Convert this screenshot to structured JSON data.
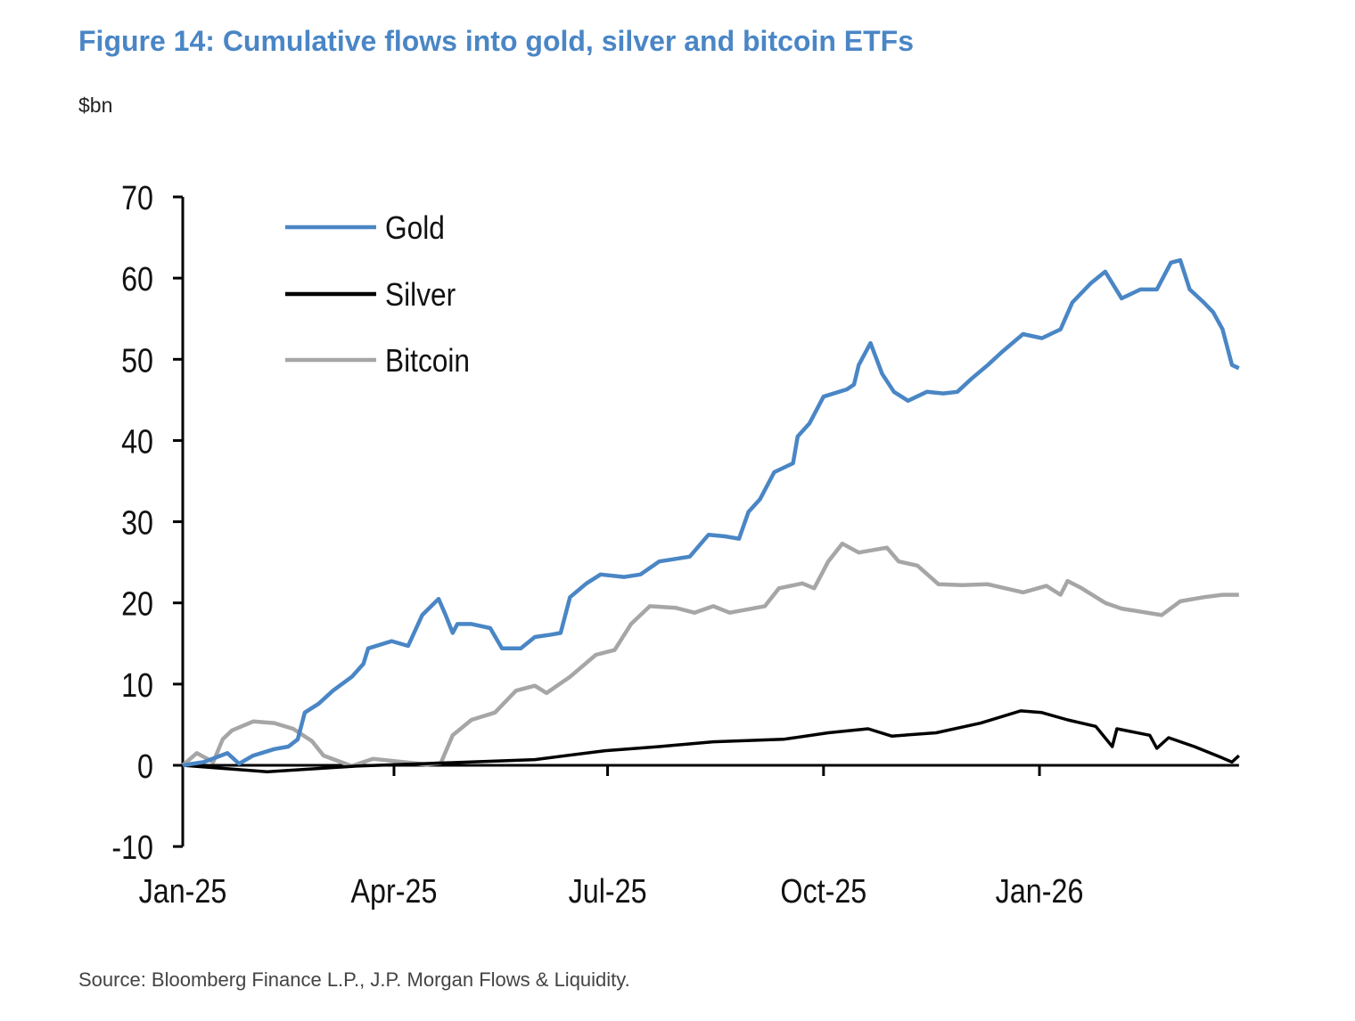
{
  "header": {
    "title": "Figure 14: Cumulative flows into gold, silver and bitcoin ETFs",
    "unit": "$bn"
  },
  "footer": {
    "source": "Source: Bloomberg Finance L.P., J.P. Morgan Flows & Liquidity."
  },
  "chart_data": {
    "type": "line",
    "title": "Figure 14: Cumulative flows into gold, silver and bitcoin ETFs",
    "ylabel": "$bn",
    "xlabel": "",
    "ylim": [
      -10,
      70
    ],
    "yticks": [
      "70",
      "60",
      "50",
      "40",
      "30",
      "20",
      "10",
      "0",
      "-10"
    ],
    "xlim": [
      "2025-01-01",
      "2026-03-27"
    ],
    "xticks": [
      {
        "date": "2025-01-01",
        "label": "Jan-25"
      },
      {
        "date": "2025-04-01",
        "label": "Apr-25"
      },
      {
        "date": "2025-07-01",
        "label": "Jul-25"
      },
      {
        "date": "2025-10-01",
        "label": "Oct-25"
      },
      {
        "date": "2026-01-01",
        "label": "Jan-26"
      }
    ],
    "grid": false,
    "legend": "top-left",
    "series": [
      {
        "name": "Gold",
        "color": "#4a86c5",
        "points": [
          [
            "2025-01-01",
            0
          ],
          [
            "2025-01-10",
            0.4
          ],
          [
            "2025-01-20",
            1.5
          ],
          [
            "2025-01-25",
            0.2
          ],
          [
            "2025-01-31",
            1.2
          ],
          [
            "2025-02-09",
            2.0
          ],
          [
            "2025-02-15",
            2.3
          ],
          [
            "2025-02-19",
            3.2
          ],
          [
            "2025-02-22",
            6.5
          ],
          [
            "2025-02-28",
            7.6
          ],
          [
            "2025-03-06",
            9.2
          ],
          [
            "2025-03-14",
            10.9
          ],
          [
            "2025-03-19",
            12.5
          ],
          [
            "2025-03-21",
            14.4
          ],
          [
            "2025-03-31",
            15.3
          ],
          [
            "2025-04-07",
            14.7
          ],
          [
            "2025-04-13",
            18.5
          ],
          [
            "2025-04-20",
            20.5
          ],
          [
            "2025-04-23",
            18.5
          ],
          [
            "2025-04-26",
            16.3
          ],
          [
            "2025-04-28",
            17.4
          ],
          [
            "2025-05-04",
            17.4
          ],
          [
            "2025-05-12",
            16.9
          ],
          [
            "2025-05-17",
            14.4
          ],
          [
            "2025-05-25",
            14.4
          ],
          [
            "2025-05-31",
            15.8
          ],
          [
            "2025-06-07",
            16.1
          ],
          [
            "2025-06-11",
            16.3
          ],
          [
            "2025-06-15",
            20.7
          ],
          [
            "2025-06-22",
            22.4
          ],
          [
            "2025-06-28",
            23.5
          ],
          [
            "2025-07-08",
            23.2
          ],
          [
            "2025-07-15",
            23.5
          ],
          [
            "2025-07-23",
            25.1
          ],
          [
            "2025-08-05",
            25.7
          ],
          [
            "2025-08-13",
            28.4
          ],
          [
            "2025-08-20",
            28.2
          ],
          [
            "2025-08-26",
            27.9
          ],
          [
            "2025-08-30",
            31.2
          ],
          [
            "2025-09-04",
            32.8
          ],
          [
            "2025-09-10",
            36.1
          ],
          [
            "2025-09-18",
            37.2
          ],
          [
            "2025-09-20",
            40.5
          ],
          [
            "2025-09-25",
            42.1
          ],
          [
            "2025-10-01",
            45.4
          ],
          [
            "2025-10-11",
            46.3
          ],
          [
            "2025-10-14",
            46.9
          ],
          [
            "2025-10-16",
            49.3
          ],
          [
            "2025-10-21",
            52.0
          ],
          [
            "2025-10-26",
            48.2
          ],
          [
            "2025-10-31",
            46.0
          ],
          [
            "2025-11-06",
            44.9
          ],
          [
            "2025-11-14",
            46.0
          ],
          [
            "2025-11-21",
            45.8
          ],
          [
            "2025-11-27",
            46.0
          ],
          [
            "2025-12-03",
            47.6
          ],
          [
            "2025-12-10",
            49.3
          ],
          [
            "2025-12-16",
            50.9
          ],
          [
            "2025-12-25",
            53.1
          ],
          [
            "2026-01-02",
            52.6
          ],
          [
            "2026-01-10",
            53.7
          ],
          [
            "2026-01-15",
            57.0
          ],
          [
            "2026-01-23",
            59.4
          ],
          [
            "2026-01-29",
            60.8
          ],
          [
            "2026-02-05",
            57.5
          ],
          [
            "2026-02-13",
            58.6
          ],
          [
            "2026-02-20",
            58.6
          ],
          [
            "2026-02-26",
            61.9
          ],
          [
            "2026-03-02",
            62.2
          ],
          [
            "2026-03-06",
            58.6
          ],
          [
            "2026-03-12",
            57.0
          ],
          [
            "2026-03-16",
            55.8
          ],
          [
            "2026-03-20",
            53.7
          ],
          [
            "2026-03-24",
            49.3
          ],
          [
            "2026-03-27",
            48.9
          ]
        ]
      },
      {
        "name": "Silver",
        "color": "#000000",
        "points": [
          [
            "2025-01-01",
            0
          ],
          [
            "2025-02-06",
            -0.8
          ],
          [
            "2025-03-16",
            -0.1
          ],
          [
            "2025-04-23",
            0.3
          ],
          [
            "2025-05-31",
            0.7
          ],
          [
            "2025-06-30",
            1.8
          ],
          [
            "2025-07-23",
            2.3
          ],
          [
            "2025-08-15",
            2.9
          ],
          [
            "2025-09-14",
            3.2
          ],
          [
            "2025-10-03",
            4.0
          ],
          [
            "2025-10-20",
            4.5
          ],
          [
            "2025-10-30",
            3.6
          ],
          [
            "2025-11-18",
            4.0
          ],
          [
            "2025-12-07",
            5.2
          ],
          [
            "2025-12-24",
            6.7
          ],
          [
            "2026-01-02",
            6.5
          ],
          [
            "2026-01-13",
            5.6
          ],
          [
            "2026-01-25",
            4.8
          ],
          [
            "2026-02-01",
            2.3
          ],
          [
            "2026-02-03",
            4.5
          ],
          [
            "2026-02-17",
            3.7
          ],
          [
            "2026-02-20",
            2.1
          ],
          [
            "2026-02-25",
            3.4
          ],
          [
            "2026-03-08",
            2.3
          ],
          [
            "2026-03-20",
            0.9
          ],
          [
            "2026-03-24",
            0.4
          ],
          [
            "2026-03-27",
            1.2
          ]
        ]
      },
      {
        "name": "Bitcoin",
        "color": "#a6a6a6",
        "points": [
          [
            "2025-01-01",
            0
          ],
          [
            "2025-01-07",
            1.5
          ],
          [
            "2025-01-14",
            0.4
          ],
          [
            "2025-01-18",
            3.2
          ],
          [
            "2025-01-22",
            4.3
          ],
          [
            "2025-01-31",
            5.4
          ],
          [
            "2025-02-09",
            5.2
          ],
          [
            "2025-02-17",
            4.5
          ],
          [
            "2025-02-25",
            3.0
          ],
          [
            "2025-03-02",
            1.2
          ],
          [
            "2025-03-14",
            -0.1
          ],
          [
            "2025-03-23",
            0.8
          ],
          [
            "2025-04-05",
            0.4
          ],
          [
            "2025-04-15",
            0.1
          ],
          [
            "2025-04-21",
            0.3
          ],
          [
            "2025-04-26",
            3.7
          ],
          [
            "2025-05-04",
            5.6
          ],
          [
            "2025-05-14",
            6.5
          ],
          [
            "2025-05-23",
            9.2
          ],
          [
            "2025-05-31",
            9.8
          ],
          [
            "2025-06-05",
            8.9
          ],
          [
            "2025-06-15",
            10.9
          ],
          [
            "2025-06-26",
            13.6
          ],
          [
            "2025-07-04",
            14.2
          ],
          [
            "2025-07-11",
            17.4
          ],
          [
            "2025-07-19",
            19.6
          ],
          [
            "2025-07-30",
            19.4
          ],
          [
            "2025-08-07",
            18.8
          ],
          [
            "2025-08-15",
            19.6
          ],
          [
            "2025-08-22",
            18.8
          ],
          [
            "2025-09-06",
            19.6
          ],
          [
            "2025-09-12",
            21.8
          ],
          [
            "2025-09-22",
            22.4
          ],
          [
            "2025-09-27",
            21.8
          ],
          [
            "2025-10-03",
            25.1
          ],
          [
            "2025-10-09",
            27.3
          ],
          [
            "2025-10-16",
            26.2
          ],
          [
            "2025-10-28",
            26.8
          ],
          [
            "2025-11-02",
            25.1
          ],
          [
            "2025-11-10",
            24.6
          ],
          [
            "2025-11-19",
            22.3
          ],
          [
            "2025-11-29",
            22.2
          ],
          [
            "2025-12-10",
            22.3
          ],
          [
            "2025-12-25",
            21.3
          ],
          [
            "2026-01-04",
            22.1
          ],
          [
            "2026-01-10",
            21.0
          ],
          [
            "2026-01-13",
            22.7
          ],
          [
            "2026-01-19",
            21.8
          ],
          [
            "2026-01-29",
            20.0
          ],
          [
            "2026-02-05",
            19.3
          ],
          [
            "2026-02-22",
            18.5
          ],
          [
            "2026-03-02",
            20.2
          ],
          [
            "2026-03-12",
            20.7
          ],
          [
            "2026-03-20",
            21.0
          ],
          [
            "2026-03-27",
            21.0
          ]
        ]
      }
    ]
  }
}
